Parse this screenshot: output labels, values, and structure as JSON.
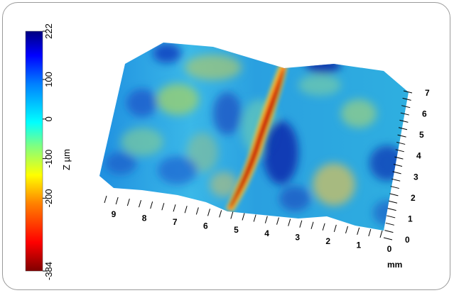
{
  "chart_data": {
    "type": "heatmap",
    "title": "",
    "colorbar": {
      "label": "Z µm",
      "ticks": [
        "222",
        "100",
        "0",
        "-100",
        "-200",
        "-384"
      ],
      "min": -384,
      "max": 222,
      "colormap": [
        "#7f0000",
        "#ff0000",
        "#ff7f00",
        "#ffff00",
        "#7fff7f",
        "#00ffff",
        "#007fff",
        "#0000ff",
        "#00007f"
      ]
    },
    "x_axis": {
      "ticks": [
        "9",
        "8",
        "7",
        "6",
        "5",
        "4",
        "3",
        "2",
        "1",
        "0"
      ],
      "unit": "mm",
      "range": [
        0,
        9
      ]
    },
    "y_axis": {
      "ticks": [
        "0",
        "1",
        "2",
        "3",
        "4",
        "5",
        "6",
        "7"
      ],
      "range": [
        0,
        7
      ]
    },
    "surface": {
      "description_values": "3D surface topography; deep groove near x≈5 mm reaching about -384 µm, surrounding area between about -200 and 222 µm"
    }
  }
}
